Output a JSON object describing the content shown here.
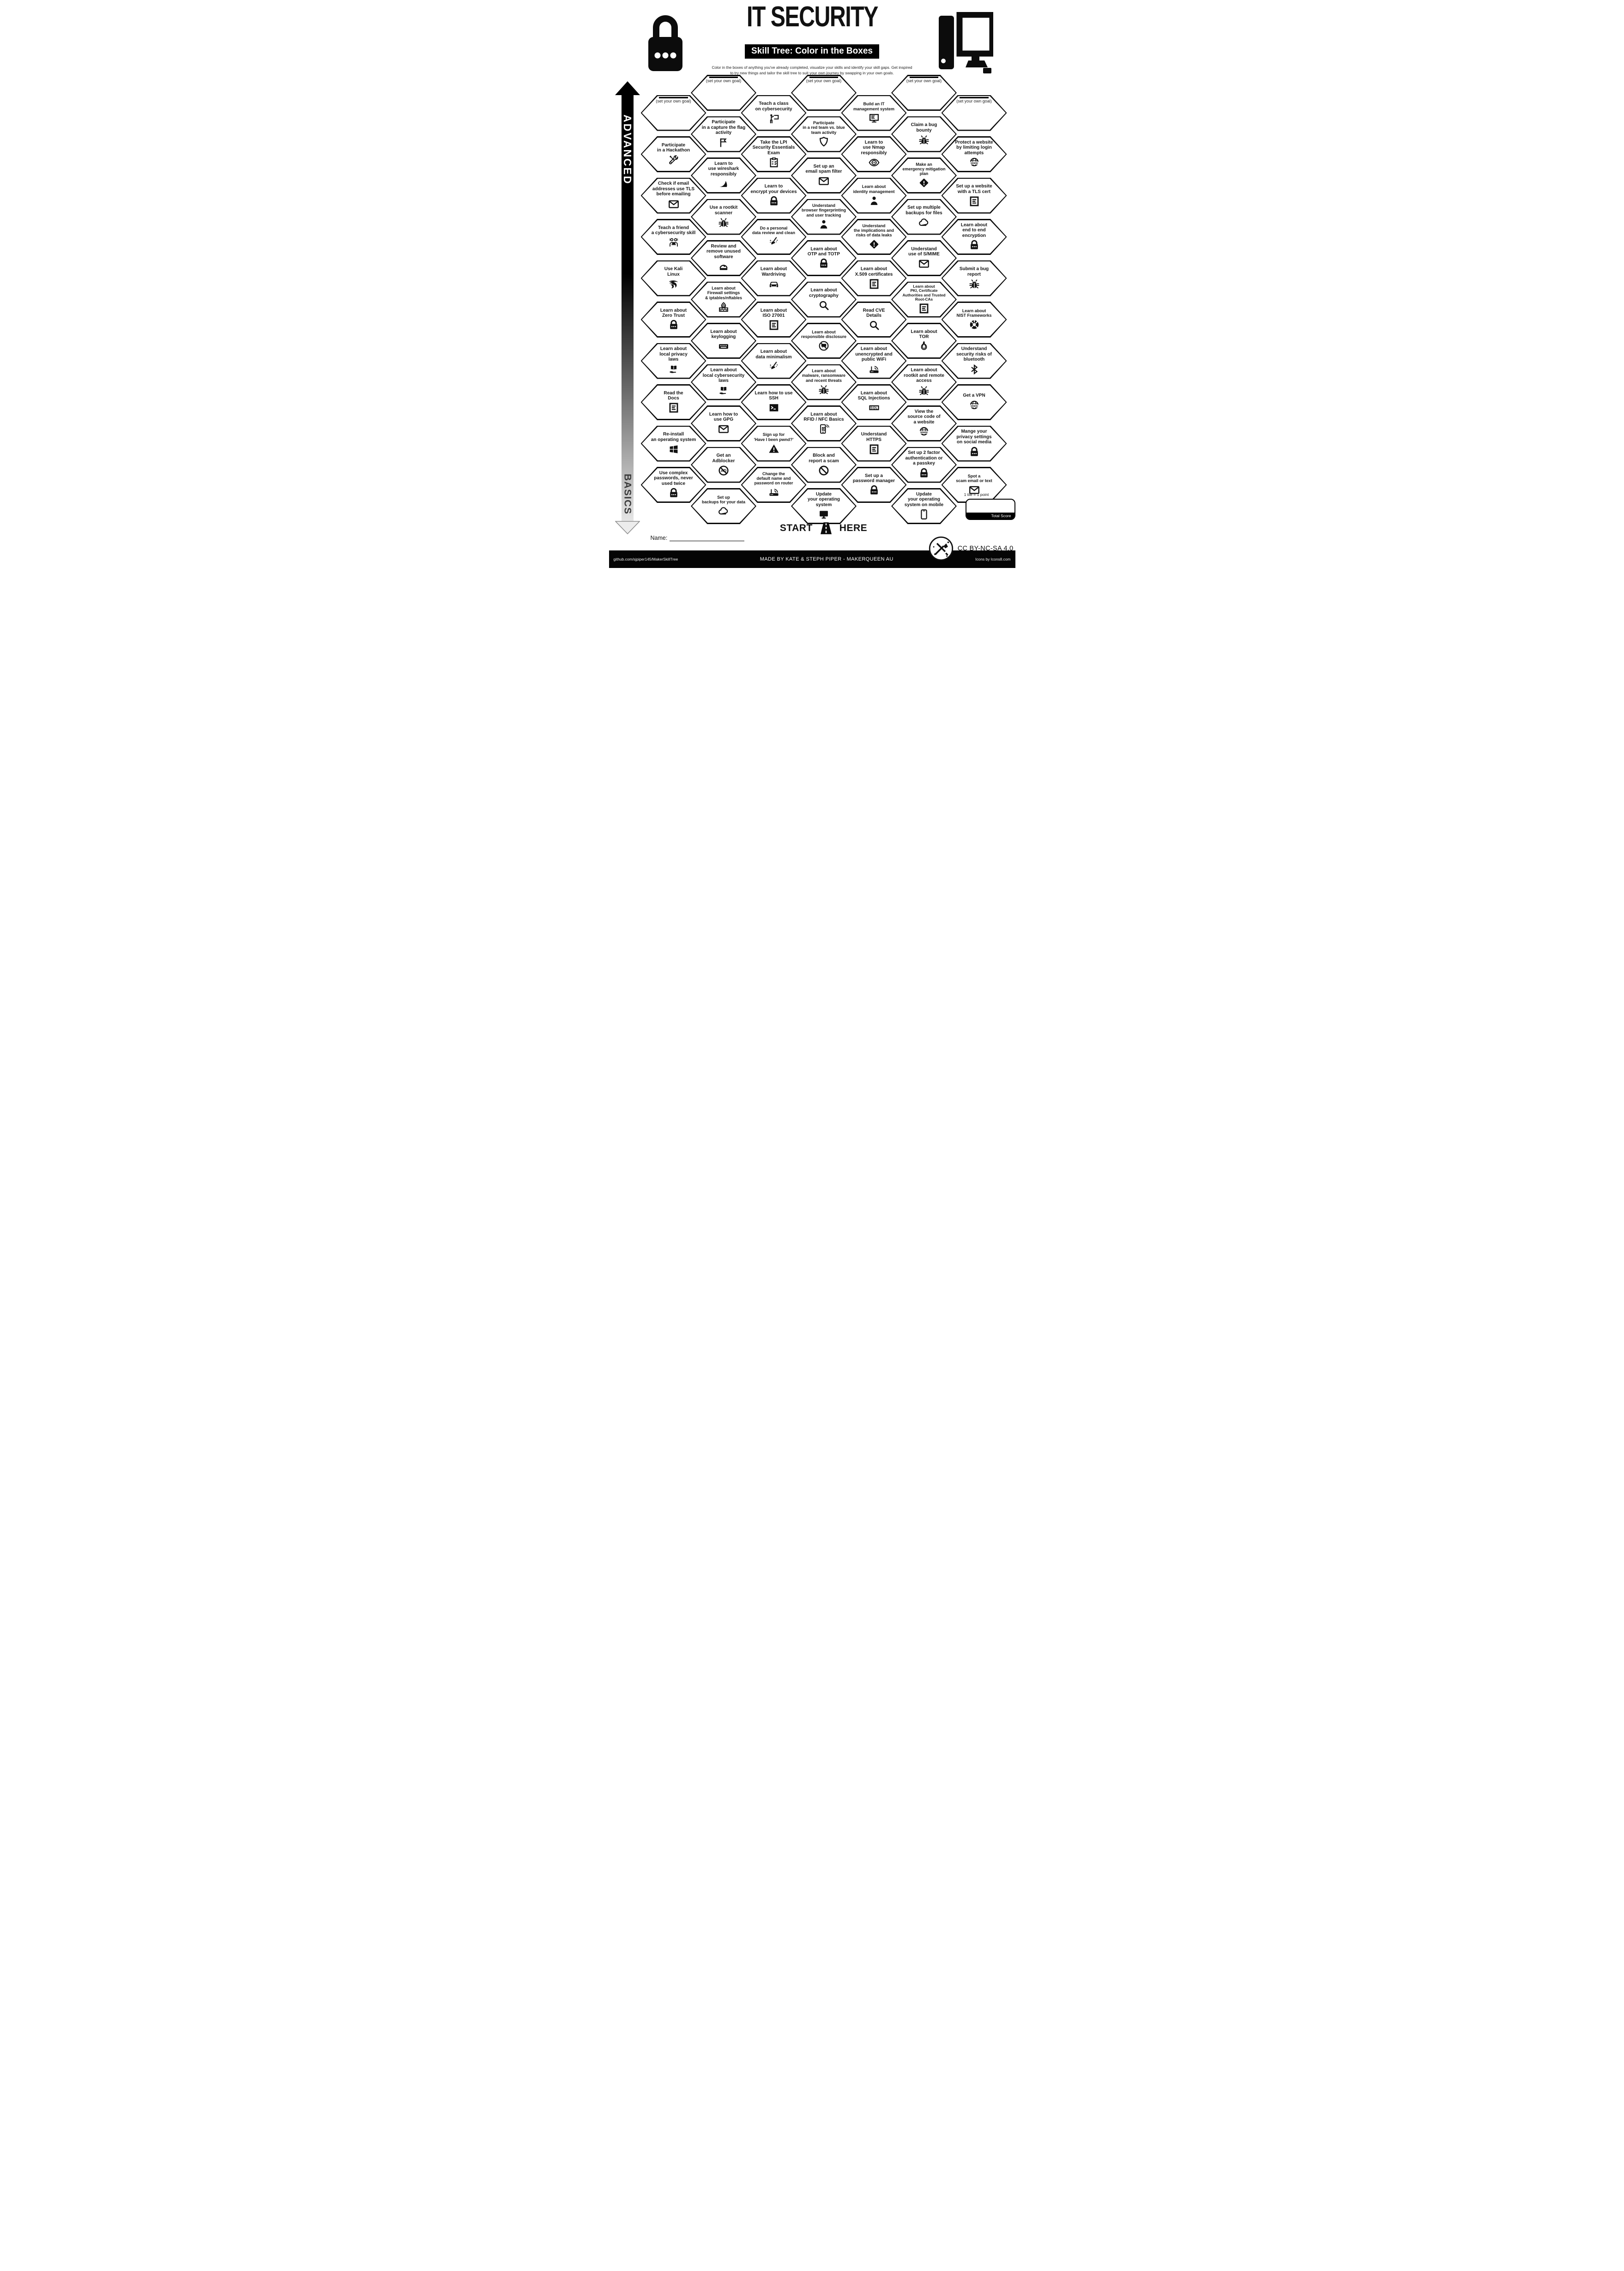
{
  "header": {
    "title": "IT SECURITY",
    "subtitle": "Skill Tree: Color in the Boxes",
    "description": "Color in the boxes of anything you've already completed, visualize your skills and identify your skill gaps.  Get inspired\nto try new things and tailor the skill tree to suit your own journey by swapping in your own goals."
  },
  "axis": {
    "top_label": "ADVANCED",
    "bottom_label": "BASICS"
  },
  "goal_label": "(set your own goal)",
  "columns": [
    {
      "hexes": [
        {
          "label": "(set your own goal)",
          "goal": true,
          "icon": null
        },
        {
          "label": "Participate\nin a Hackathon",
          "icon": "tools"
        },
        {
          "label": "Check if email\naddresses use TLS\nbefore emailing",
          "icon": "envelope"
        },
        {
          "label": "Teach a friend\na cybersecurity skill",
          "icon": "people-laptop"
        },
        {
          "label": "Use Kali\nLinux",
          "icon": "kali"
        },
        {
          "label": "Learn about\nZero Trust",
          "icon": "padlock"
        },
        {
          "label": "Learn about\nlocal privacy\nlaws",
          "icon": "book-hand"
        },
        {
          "label": "Read the\nDocs",
          "icon": "document"
        },
        {
          "label": "Re-install\nan operating system",
          "icon": "windows"
        },
        {
          "label": "Use complex\npasswords, never\nused twice",
          "icon": "padlock"
        }
      ]
    },
    {
      "hexes": [
        {
          "label": "(set your own goal)",
          "goal": true,
          "icon": null
        },
        {
          "label": "Participate\nin a capture the flag\nactivity",
          "icon": "flag"
        },
        {
          "label": "Learn to\nuse wireshark\nresponsibly",
          "icon": "fin"
        },
        {
          "label": "Use a rootkit\nscanner",
          "icon": "bug"
        },
        {
          "label": "Review and\nremove unused\nsoftware",
          "icon": "gauge"
        },
        {
          "label": "Learn about\nFirewall settings\n& iptables/nftables",
          "sz": "s",
          "icon": "firewall"
        },
        {
          "label": "Learn about\nkeylogging",
          "icon": "keyboard"
        },
        {
          "label": "Learn about\nlocal cybersecurity\nlaws",
          "icon": "book-hand"
        },
        {
          "label": "Learn how to\nuse GPG",
          "icon": "envelope"
        },
        {
          "label": "Get an\nAdblocker",
          "icon": "ad-block"
        },
        {
          "label": "Set up\nbackups for your data",
          "sz": "s",
          "icon": "cloud"
        }
      ]
    },
    {
      "hexes": [
        {
          "label": "Teach a class\non cybersecurity",
          "icon": "teacher"
        },
        {
          "label": "Take the LPI\nSecurity Essentials\nExam",
          "icon": "clipboard"
        },
        {
          "label": "Learn to\nencrypt your devices",
          "icon": "padlock"
        },
        {
          "label": "Do a personal\ndata review and clean",
          "sz": "s",
          "icon": "broom"
        },
        {
          "label": "Learn about\nWardriving",
          "icon": "car"
        },
        {
          "label": "Learn about\nISO 27001",
          "icon": "document"
        },
        {
          "label": "Learn about\ndata minimalism",
          "icon": "broom"
        },
        {
          "label": "Learn how to use\nSSH",
          "icon": "terminal"
        },
        {
          "label": "Sign up for\n'Have I been pwnd?'",
          "sz": "s",
          "icon": "warning"
        },
        {
          "label": "Change the\ndefault name and\npassword on router",
          "sz": "s",
          "icon": "router"
        }
      ]
    },
    {
      "hexes": [
        {
          "label": "(set your own goal)",
          "goal": true,
          "icon": null
        },
        {
          "label": "Participate\nin a red team vs. blue\nteam activity",
          "sz": "s",
          "icon": "shield"
        },
        {
          "label": "Set up an\nemail spam filter",
          "icon": "envelope"
        },
        {
          "label": "Understand\nbrowser fingerprinting\nand user tracking",
          "sz": "s",
          "icon": "person"
        },
        {
          "label": "Learn about\nOTP and TOTP",
          "icon": "padlock"
        },
        {
          "label": "Learn about\ncryptography",
          "icon": "magnifier"
        },
        {
          "label": "Learn about\nresponsible disclosure",
          "sz": "s",
          "icon": "no-speech"
        },
        {
          "label": "Learn about\nmalware, ransomware\nand recent threats",
          "sz": "s",
          "icon": "bug"
        },
        {
          "label": "Learn about\nRFID / NFC Basics",
          "icon": "phone-nfc"
        },
        {
          "label": "Block and\nreport a scam",
          "icon": "prohibited"
        },
        {
          "label": "Update\nyour operating\nsystem",
          "icon": "monitor"
        }
      ]
    },
    {
      "hexes": [
        {
          "label": "Build an IT\nmanagement system",
          "sz": "s",
          "icon": "monitor-lines"
        },
        {
          "label": "Learn to\nuse Nmap\nresponsibly",
          "icon": "eye-target"
        },
        {
          "label": "Learn about\nidentity management",
          "sz": "s",
          "icon": "person"
        },
        {
          "label": "Understand\nthe implications and\nrisks of data leaks",
          "sz": "s",
          "icon": "diamond-warning"
        },
        {
          "label": "Learn about\nX.509 certificates",
          "icon": "document"
        },
        {
          "label": "Read CVE\nDetails",
          "icon": "magnifier"
        },
        {
          "label": "Learn about\nunencrypted and\npublic WiFi",
          "icon": "router"
        },
        {
          "label": "Learn about\nSQL Injections",
          "icon": "sql"
        },
        {
          "label": "Understand\nHTTPS",
          "icon": "document"
        },
        {
          "label": "Set up a\npassword manager",
          "icon": "padlock"
        }
      ]
    },
    {
      "hexes": [
        {
          "label": "(set your own goal)",
          "goal": true,
          "icon": null
        },
        {
          "label": "Claim a bug\nbounty",
          "icon": "bug"
        },
        {
          "label": "Make an\nemergency mitigation\nplan",
          "sz": "s",
          "icon": "diamond-warning"
        },
        {
          "label": "Set up multiple\nbackups for files",
          "icon": "cloud"
        },
        {
          "label": "Understand\nuse of S/MIME",
          "icon": "envelope"
        },
        {
          "label": "Learn about\nPKI, Certificate\nAuthorities and Trusted\nRoot-CAs",
          "sz": "xs",
          "icon": "document"
        },
        {
          "label": "Learn about\nTOR",
          "icon": "onion"
        },
        {
          "label": "Learn about\nrootkit and remote\naccess",
          "icon": "bug"
        },
        {
          "label": "View the\nsource code of\na website",
          "icon": "globe"
        },
        {
          "label": "Set up 2 factor\nauthentication or\na passkey",
          "icon": "padlock"
        },
        {
          "label": "Update\nyour operating\nsystem on mobile",
          "icon": "phone"
        }
      ]
    },
    {
      "hexes": [
        {
          "label": "(set your own goal)",
          "goal": true,
          "icon": null
        },
        {
          "label": "Protect a website\nby limiting login\nattempts",
          "icon": "globe"
        },
        {
          "label": "Set up a website\nwith a TLS cert",
          "icon": "document"
        },
        {
          "label": "Learn about\nend to end\nencryption",
          "icon": "padlock"
        },
        {
          "label": "Submit a bug\nreport",
          "icon": "bug"
        },
        {
          "label": "Learn about\nNIST Frameworks",
          "sz": "s",
          "icon": "lifebuoy"
        },
        {
          "label": "Understand\nsecurity risks of\nbluetooth",
          "icon": "bluetooth"
        },
        {
          "label": "Get a VPN",
          "icon": "globe"
        },
        {
          "label": "Mange your\nprivacy settings\non social media",
          "icon": "padlock"
        },
        {
          "label": "Spot a\nscam email or text",
          "sz": "s",
          "icon": "envelope"
        }
      ]
    }
  ],
  "start_marker": {
    "start": "START",
    "here": "HERE"
  },
  "scoring": {
    "note": "1 tile = 1 point",
    "total_label": "Total Score"
  },
  "name_field": {
    "label": "Name:"
  },
  "license": {
    "text": "CC BY-NC-SA 4.0"
  },
  "footer": {
    "left": "github.com/sjpiper145/MakerSkillTree",
    "center": "MADE BY KATE & STEPH PIPER  -  MAKERQUEEN AU",
    "right": "Icons by Icons8.com"
  }
}
